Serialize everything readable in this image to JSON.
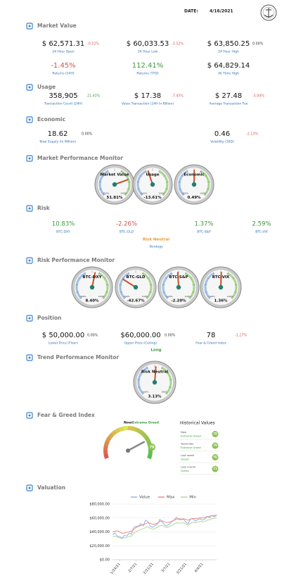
{
  "header": {
    "date_label": "DATE:",
    "date": "4/16/2021"
  },
  "market_value": {
    "title": "Market Value",
    "cards": [
      {
        "value": "$ 62,571.31",
        "change": "-0.52%",
        "label": "24 Hour Open"
      },
      {
        "value": "$ 60,033.53",
        "change": "-3.32%",
        "label": "24 Hour Low"
      },
      {
        "value": "$ 63,850.25",
        "change": "0.00%",
        "label": "24 Hour High"
      },
      {
        "value": "-1.45%",
        "label": "Returns (24H)"
      },
      {
        "value": "112.41%",
        "label": "Returns (YTD)"
      },
      {
        "value": "$ 64,829.14",
        "label": "All Time High"
      }
    ]
  },
  "usage": {
    "title": "Usage",
    "cards": [
      {
        "value": "358,905",
        "change": "21.43%",
        "label": "Transaction Count (24H)"
      },
      {
        "value": "$ 17.38",
        "change": "-7.45%",
        "label": "Value Transaction (24H In Billion)"
      },
      {
        "value": "$ 27.48",
        "change": "-5.04%",
        "label": "Average Transaction Fee"
      }
    ]
  },
  "economic": {
    "title": "Economic",
    "cards": [
      {
        "value": "18.62",
        "change": "0.00%",
        "label": "Total Supply (In Million)"
      },
      {
        "value": "0.46",
        "change": "-2.13%",
        "label": "Volatility (30D)"
      }
    ]
  },
  "gauge_scale": {
    "min": -100,
    "max": 100,
    "min_label": "-100%",
    "max_label": "100%"
  },
  "market_monitor": {
    "title": "Market Performance Monitor",
    "gauges": [
      {
        "label": "Market Value",
        "value": 51.81,
        "value_label": "51.81%"
      },
      {
        "label": "Usage",
        "value": -13.61,
        "value_label": "-13.61%"
      },
      {
        "label": "Economic",
        "value": 0.49,
        "value_label": "0.49%"
      }
    ]
  },
  "risk": {
    "title": "Risk",
    "cards": [
      {
        "value": "10.83%",
        "label": "BTC-DXY"
      },
      {
        "value": "-2.26%",
        "label": "BTC-GLD"
      },
      {
        "value": "1.37%",
        "label": "BTC-S&P"
      },
      {
        "value": "2.59%",
        "label": "BTC-VIX"
      }
    ],
    "strategy_value": "Risk Neutral",
    "strategy_label": "Strategy"
  },
  "risk_monitor": {
    "title": "Risk Performance Monitor",
    "gauges": [
      {
        "label": "BTC-DXY",
        "value": 8.4,
        "value_label": "8.40%"
      },
      {
        "label": "BTC-GLD",
        "value": -42.67,
        "value_label": "-42.67%"
      },
      {
        "label": "BTC-S&P",
        "value": -2.2,
        "value_label": "-2.20%"
      },
      {
        "label": "BTC-VIX",
        "value": 1.36,
        "value_label": "1.36%"
      }
    ]
  },
  "position": {
    "title": "Position",
    "cards": [
      {
        "value": "$ 50,000.00",
        "change": "0.00%",
        "label": "Lower Price (Floor)"
      },
      {
        "value": "$60,000.00",
        "change": "0.00%",
        "label": "Upper Price (Ceiling)"
      },
      {
        "value": "78",
        "change": "-1.27%",
        "label": "Fear & Greed Index"
      }
    ],
    "direction": "Long"
  },
  "trend_monitor": {
    "title": "Trend Performance Monitor",
    "gauges": [
      {
        "label": "Risk Neutral",
        "value": 3.13,
        "value_label": "3.13%"
      }
    ]
  },
  "fear_greed": {
    "title": "Fear & Greed Index",
    "now_label": "Now:",
    "now_text": "Extreme Greed",
    "value": 78,
    "range": [
      0,
      100
    ],
    "historical_title": "Historical Values",
    "rows": [
      {
        "period": "Now",
        "text": "Extreme Greed",
        "value": 78
      },
      {
        "period": "Yesterday",
        "text": "Extreme Greed",
        "value": 79
      },
      {
        "period": "Last week",
        "text": "Greed",
        "value": 76
      },
      {
        "period": "Last month",
        "text": "Greed",
        "value": 71
      }
    ]
  },
  "chart_data": {
    "type": "line",
    "title": "Valuation",
    "categories": [
      null,
      null,
      null,
      "1/24/21",
      null,
      null,
      null,
      null,
      null,
      null,
      "2/7/21",
      null,
      null,
      null,
      null,
      null,
      null,
      "2/21/21",
      null,
      null,
      null,
      null,
      null,
      null,
      "3/7/21",
      null,
      null,
      null,
      null,
      null,
      null,
      "3/21/21",
      null,
      null,
      null,
      null,
      null,
      null,
      "4/4/21",
      null,
      null,
      null,
      null,
      null,
      null
    ],
    "series": [
      {
        "name": "Value",
        "color": "#8fb4e8",
        "values": [
          36000,
          38500,
          34000,
          33500,
          31000,
          35000,
          34000,
          38000,
          37000,
          46500,
          48000,
          48500,
          52000,
          49000,
          57000,
          55000,
          48000,
          46500,
          49500,
          51000,
          58000,
          55000,
          50000,
          48500,
          51000,
          54500,
          57000,
          61000,
          58000,
          57500,
          58500,
          54000,
          52000,
          58500,
          59000,
          55500,
          57500,
          59000,
          57000,
          58500,
          62000,
          60500,
          63500,
          62000,
          63500
        ]
      },
      {
        "name": "Max",
        "color": "#f08a8a",
        "values": [
          40000,
          41000,
          41500,
          40000,
          38000,
          38500,
          39500,
          40000,
          41000,
          44000,
          46500,
          48000,
          49500,
          50500,
          52000,
          53500,
          52500,
          51000,
          51500,
          52500,
          55000,
          56000,
          54500,
          53500,
          54000,
          55500,
          56500,
          58500,
          59000,
          58500,
          59000,
          58000,
          57000,
          58500,
          59500,
          59000,
          59500,
          60500,
          60000,
          60500,
          62000,
          62500,
          63500,
          63500,
          64500
        ]
      },
      {
        "name": "Min",
        "color": "#b2d69a",
        "values": [
          33000,
          34000,
          32500,
          31500,
          30500,
          31500,
          32000,
          33500,
          34000,
          38000,
          40500,
          42000,
          44000,
          44500,
          46500,
          47500,
          45000,
          44000,
          45000,
          46500,
          49000,
          49500,
          47500,
          46500,
          47500,
          49500,
          51000,
          53000,
          53000,
          52500,
          53500,
          51500,
          50000,
          52500,
          54000,
          53000,
          54000,
          55500,
          54500,
          55000,
          57000,
          57500,
          59000,
          59500,
          60500
        ]
      }
    ],
    "ylim": [
      0,
      80000
    ],
    "yticks": [
      {
        "value": 0,
        "label": "$0.00"
      },
      {
        "value": 20000,
        "label": "$20,000.00"
      },
      {
        "value": 40000,
        "label": "$40,000.00"
      },
      {
        "value": 60000,
        "label": "$60,000.00"
      },
      {
        "value": 80000,
        "label": "$80,000.00"
      }
    ],
    "grid": true,
    "legend": "top"
  }
}
